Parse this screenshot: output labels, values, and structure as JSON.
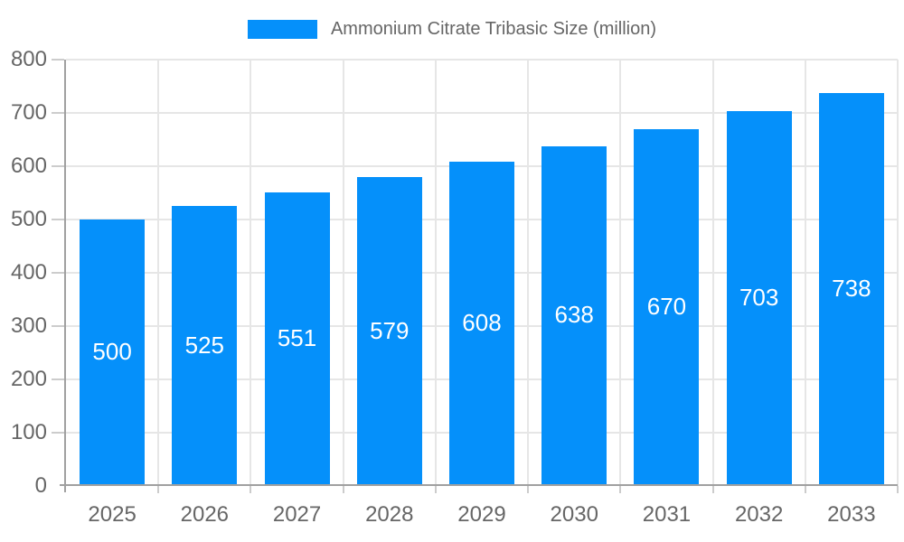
{
  "chart_data": {
    "type": "bar",
    "title": "Ammonium Citrate Tribasic Size (million)",
    "categories": [
      "2025",
      "2026",
      "2027",
      "2028",
      "2029",
      "2030",
      "2031",
      "2032",
      "2033"
    ],
    "values": [
      500,
      525,
      551,
      579,
      608,
      638,
      670,
      703,
      738
    ],
    "xlabel": "",
    "ylabel": "",
    "ylim": [
      0,
      800
    ],
    "yticks": [
      0,
      100,
      200,
      300,
      400,
      500,
      600,
      700,
      800
    ],
    "grid": true,
    "legend_position": "top",
    "bar_color": "#0590fa",
    "value_label_color": "#ffffff",
    "axis_text_color": "#666666",
    "axis_line_color": "#a0a0a0",
    "gridline_color": "#e6e6e6"
  }
}
